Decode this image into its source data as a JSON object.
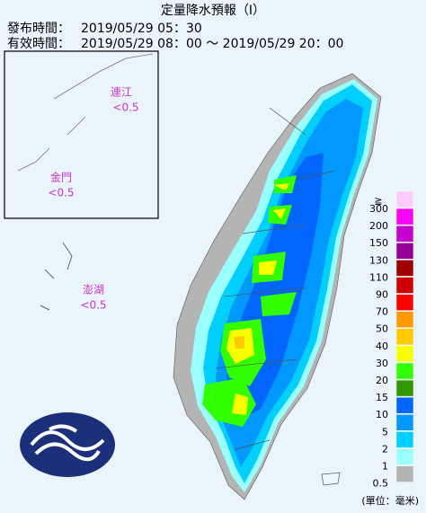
{
  "header": {
    "title": "定量降水預報（I）",
    "issue_label": "發布時間：",
    "issue_time": "2019/05/29 05：30",
    "valid_label": "有效時間：",
    "valid_time": "2019/05/29 08：00 〜 2019/05/29 20：00"
  },
  "islands": [
    {
      "name": "連江",
      "value": "<0.5"
    },
    {
      "name": "金門",
      "value": "<0.5"
    },
    {
      "name": "澎湖",
      "value": "<0.5"
    }
  ],
  "legend": {
    "symbol": "≧",
    "unit": "(單位：毫米)",
    "items": [
      {
        "label": "300",
        "color": "#fecbff"
      },
      {
        "label": "200",
        "color": "#f805f3"
      },
      {
        "label": "150",
        "color": "#c304cc"
      },
      {
        "label": "130",
        "color": "#98009a"
      },
      {
        "label": "110",
        "color": "#a00000"
      },
      {
        "label": "90",
        "color": "#cc0003"
      },
      {
        "label": "70",
        "color": "#fa0300"
      },
      {
        "label": "50",
        "color": "#ff9a00"
      },
      {
        "label": "40",
        "color": "#ffcb00"
      },
      {
        "label": "30",
        "color": "#f8ff00"
      },
      {
        "label": "20",
        "color": "#32ff00"
      },
      {
        "label": "15",
        "color": "#309901"
      },
      {
        "label": "10",
        "color": "#0165fe"
      },
      {
        "label": "5",
        "color": "#0198ff"
      },
      {
        "label": "2",
        "color": "#00cfff"
      },
      {
        "label": "1",
        "color": "#9bffff"
      },
      {
        "label": "0.5",
        "color": "#b4b4b4"
      }
    ]
  }
}
